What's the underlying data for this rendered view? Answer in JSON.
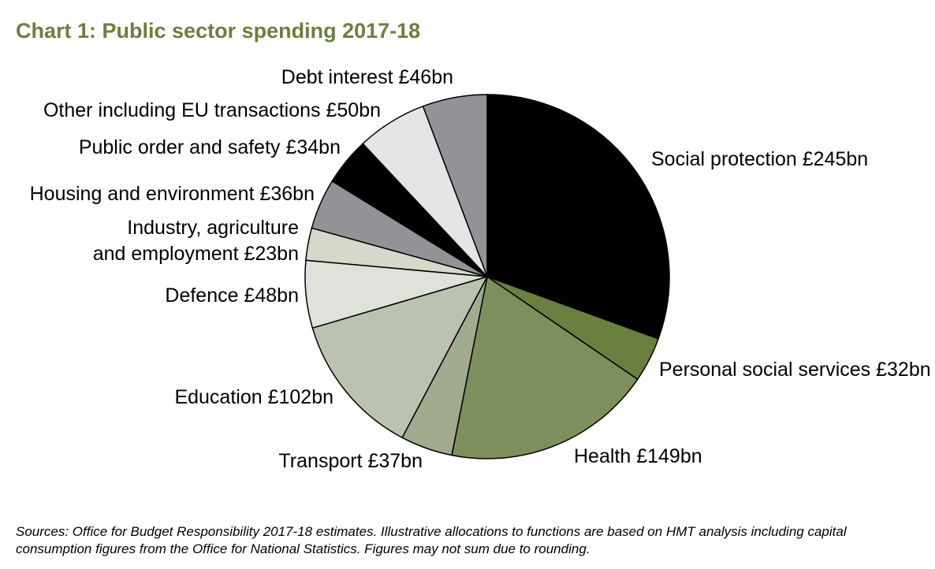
{
  "title": "Chart 1: Public sector spending 2017-18",
  "chart_data": {
    "type": "pie",
    "title": "Chart 1: Public sector spending 2017-18",
    "unit": "£bn",
    "start_angle_deg": 0,
    "direction": "clockwise",
    "slices": [
      {
        "label": "Social protection £245bn",
        "value": 245,
        "color": "#000000"
      },
      {
        "label": "Personal social services £32bn",
        "value": 32,
        "color": "#6b7f3e"
      },
      {
        "label": "Health £149bn",
        "value": 149,
        "color": "#7d8f5d"
      },
      {
        "label": "Transport £37bn",
        "value": 37,
        "color": "#a1ab8e"
      },
      {
        "label": "Education £102bn",
        "value": 102,
        "color": "#bcc2b2"
      },
      {
        "label": "Defence £48bn",
        "value": 48,
        "color": "#dfe1db"
      },
      {
        "label": "Industry, agriculture and employment £23bn",
        "value": 23,
        "color": "#d5d9cc"
      },
      {
        "label": "Housing and environment £36bn",
        "value": 36,
        "color": "#929396"
      },
      {
        "label": "Public order and safety £34bn",
        "value": 34,
        "color": "#000000"
      },
      {
        "label": "Other including EU transactions £50bn",
        "value": 50,
        "color": "#e4e5e7"
      },
      {
        "label": "Debt interest £46bn",
        "value": 46,
        "color": "#929396"
      }
    ],
    "edge_color": "#000000"
  },
  "source_note": "Sources: Office for Budget Responsibility 2017-18 estimates. Illustrative allocations to functions are based on HMT analysis including capital consumption figures from the Office for National Statistics. Figures may not sum due to rounding."
}
